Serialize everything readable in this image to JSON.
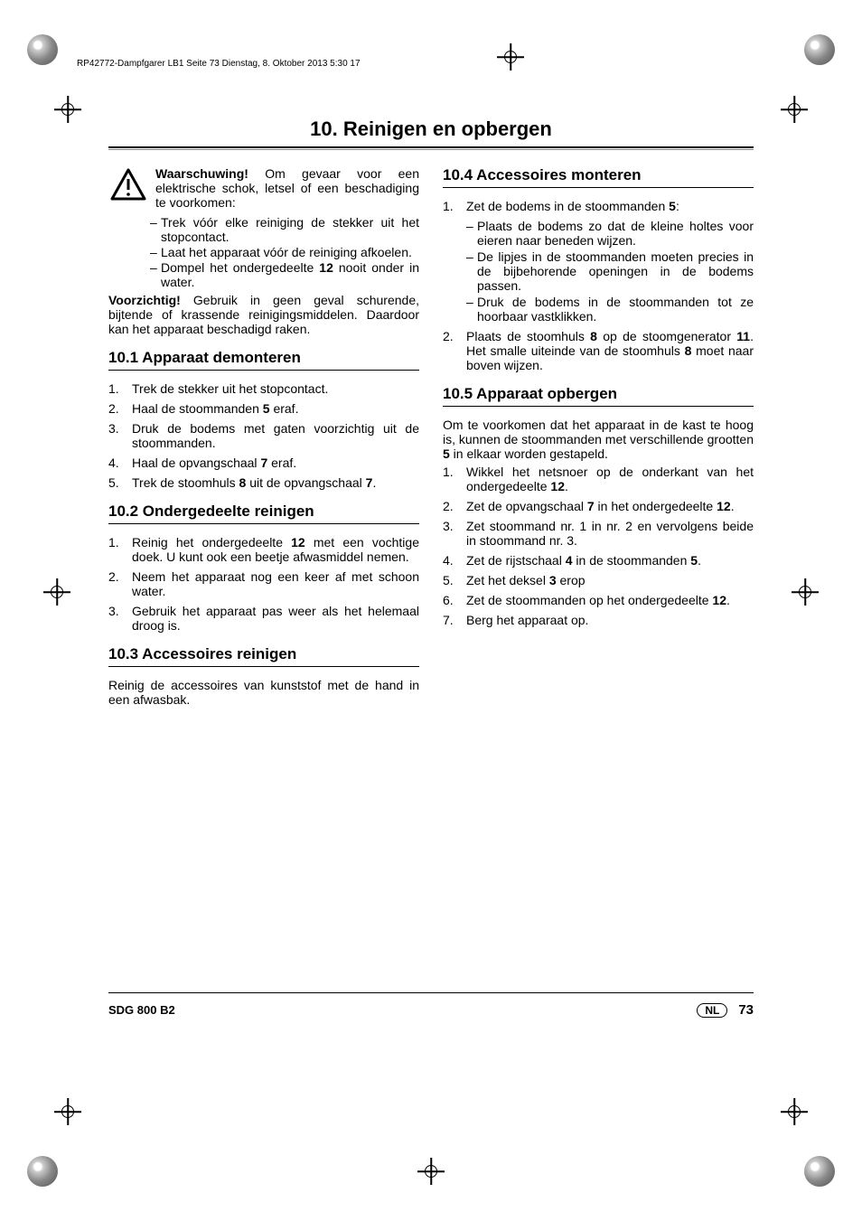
{
  "meta": {
    "header_line": "RP42772-Dampfgarer LB1  Seite 73  Dienstag, 8. Oktober 2013  5:30 17"
  },
  "section": {
    "title": "10. Reinigen en opbergen"
  },
  "col1": {
    "warning_label": "Waarschuwing!",
    "warning_text": " Om gevaar voor een elektrische schok, letsel of een beschadiging te voorkomen:",
    "warning_items": [
      "Trek vóór elke reiniging de stekker uit het stopcontact.",
      "Laat het apparaat vóór de reiniging afkoelen.",
      "Dompel het ondergedeelte <b class='ref'>12</b> nooit onder in water."
    ],
    "caution_label": "Voorzichtig!",
    "caution_text": " Gebruik in geen geval schurende, bijtende of krassende reinigingsmiddelen. Daardoor kan het apparaat beschadigd raken.",
    "s101_title": "10.1  Apparaat demonteren",
    "s101_items": [
      "Trek de stekker uit het stopcontact.",
      "Haal de stoommanden <b class='ref'>5</b> eraf.",
      "Druk de bodems met gaten voorzichtig uit de stoommanden.",
      "Haal de opvangschaal <b class='ref'>7</b> eraf.",
      "Trek de stoomhuls <b class='ref'>8</b> uit de opvangschaal <b class='ref'>7</b>."
    ],
    "s102_title": "10.2  Ondergedeelte reinigen",
    "s102_items": [
      "Reinig het ondergedeelte <b class='ref'>12</b> met een vochtige doek. U kunt ook een beetje afwasmiddel nemen.",
      "Neem het apparaat nog een keer af met schoon water.",
      "Gebruik het apparaat pas weer als het helemaal droog is."
    ],
    "s103_title": "10.3  Accessoires reinigen",
    "s103_text": "Reinig de accessoires van kunststof met de hand in een afwasbak."
  },
  "col2": {
    "s104_title": "10.4  Accessoires monteren",
    "s104_item1": "Zet de bodems in de stoommanden <b class='ref'>5</b>:",
    "s104_sub": [
      "Plaats de bodems zo dat de kleine holtes voor eieren naar beneden wijzen.",
      "De lipjes in de stoommanden moeten precies in de bijbehorende openingen in de bodems passen.",
      "Druk de bodems in de stoommanden tot ze hoorbaar vastklikken."
    ],
    "s104_item2": "Plaats de stoomhuls <b class='ref'>8</b> op de stoomgenerator <b class='ref'>11</b>. Het smalle uiteinde van de stoomhuls <b class='ref'>8</b> moet naar boven wijzen.",
    "s105_title": "10.5  Apparaat opbergen",
    "s105_intro": "Om te voorkomen dat het apparaat in de kast te hoog is, kunnen de stoommanden met verschillende grootten <b class='ref'>5</b> in elkaar worden gestapeld.",
    "s105_items": [
      "Wikkel het netsnoer op de onderkant van het ondergedeelte <b class='ref'>12</b>.",
      "Zet de opvangschaal <b class='ref'>7</b> in het ondergedeelte <b class='ref'>12</b>.",
      "Zet stoommand nr. 1 in nr. 2 en vervolgens beide in stoommand nr. 3.",
      "Zet de rijstschaal <b class='ref'>4</b> in de stoommanden <b class='ref'>5</b>.",
      "Zet het deksel <b class='ref'>3</b> erop",
      "Zet de stoommanden op het ondergedeelte <b class='ref'>12</b>.",
      "Berg het apparaat op."
    ]
  },
  "footer": {
    "model": "SDG 800 B2",
    "lang": "NL",
    "page": "73"
  }
}
